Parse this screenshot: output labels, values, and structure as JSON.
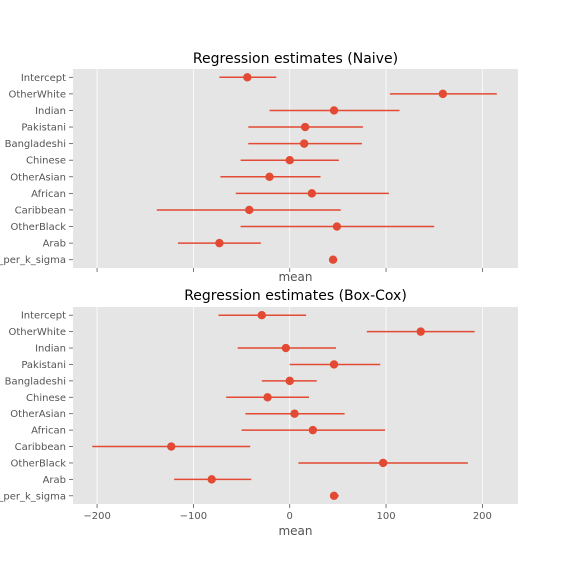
{
  "chart_data": [
    {
      "type": "scatter",
      "title": "Regression estimates (Naive)",
      "xlabel": "mean",
      "ylabel": "",
      "show_x_ticklabels": false,
      "xlim": [
        -225,
        237
      ],
      "xticks": [
        -200,
        -100,
        0,
        100,
        200
      ],
      "grid": true,
      "color": "#e24a33",
      "categories": [
        "Intercept",
        "OtherWhite",
        "Indian",
        "Pakistani",
        "Bangladeshi",
        "Chinese",
        "OtherAsian",
        "African",
        "Caribbean",
        "OtherBlack",
        "Arab",
        "_per_k_sigma"
      ],
      "mean": [
        -44,
        159,
        46,
        16,
        15,
        0,
        -21,
        23,
        -42,
        49,
        -73,
        45
      ],
      "lower": [
        -73,
        104,
        -21,
        -43,
        -43,
        -51,
        -72,
        -56,
        -138,
        -51,
        -116,
        42
      ],
      "upper": [
        -14,
        215,
        114,
        76,
        75,
        51,
        32,
        103,
        53,
        150,
        -30,
        49
      ]
    },
    {
      "type": "scatter",
      "title": "Regression estimates (Box-Cox)",
      "xlabel": "mean",
      "ylabel": "",
      "show_x_ticklabels": true,
      "xlim": [
        -225,
        237
      ],
      "xticks": [
        -200,
        -100,
        0,
        100,
        200
      ],
      "xticklabels": [
        "−200",
        "−100",
        "0",
        "100",
        "200"
      ],
      "grid": true,
      "color": "#e24a33",
      "categories": [
        "Intercept",
        "OtherWhite",
        "Indian",
        "Pakistani",
        "Bangladeshi",
        "Chinese",
        "OtherAsian",
        "African",
        "Caribbean",
        "OtherBlack",
        "Arab",
        "_per_k_sigma"
      ],
      "mean": [
        -29,
        136,
        -4,
        46,
        0,
        -23,
        5,
        24,
        -123,
        97,
        -81,
        46
      ],
      "lower": [
        -74,
        80,
        -54,
        0,
        -29,
        -66,
        -46,
        -50,
        -205,
        9,
        -120,
        42
      ],
      "upper": [
        17,
        192,
        48,
        94,
        28,
        20,
        57,
        99,
        -41,
        185,
        -40,
        51
      ]
    }
  ]
}
